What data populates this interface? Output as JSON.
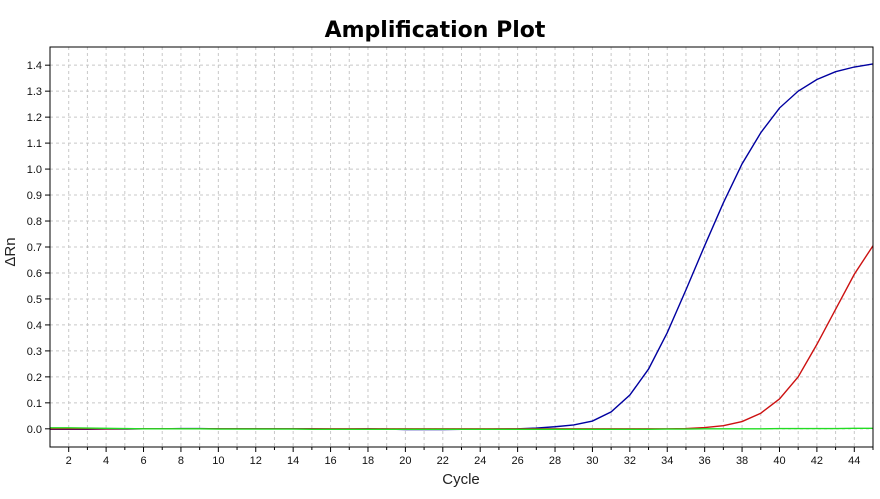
{
  "chart_data": {
    "type": "line",
    "title": "Amplification Plot",
    "xlabel": "Cycle",
    "ylabel": "ΔRn",
    "xlim": [
      1,
      45
    ],
    "ylim": [
      -0.07,
      1.47
    ],
    "x_ticks": [
      2,
      4,
      6,
      8,
      10,
      12,
      14,
      16,
      18,
      20,
      22,
      24,
      26,
      28,
      30,
      32,
      34,
      36,
      38,
      40,
      42,
      44
    ],
    "y_ticks": [
      0.0,
      0.1,
      0.2,
      0.3,
      0.4,
      0.5,
      0.6,
      0.7,
      0.8,
      0.9,
      1.0,
      1.1,
      1.2,
      1.3,
      1.4
    ],
    "y_tick_labels": [
      "0.0",
      "0.1",
      "0.2",
      "0.3",
      "0.4",
      "0.5",
      "0.6",
      "0.7",
      "0.8",
      "0.9",
      "1.0",
      "1.1",
      "1.2",
      "1.3",
      "1.4"
    ],
    "grid": true,
    "legend": "none",
    "x": [
      1,
      2,
      3,
      4,
      5,
      6,
      7,
      8,
      9,
      10,
      11,
      12,
      13,
      14,
      15,
      16,
      17,
      18,
      19,
      20,
      21,
      22,
      23,
      24,
      25,
      26,
      27,
      28,
      29,
      30,
      31,
      32,
      33,
      34,
      35,
      36,
      37,
      38,
      39,
      40,
      41,
      42,
      43,
      44,
      45
    ],
    "series": [
      {
        "color": "#0000a0",
        "values": [
          -0.002,
          -0.002,
          -0.002,
          -0.001,
          -0.001,
          0.0,
          0.0,
          0.001,
          0.001,
          0.0,
          0.0,
          0.0,
          0.0,
          0.0,
          0.0,
          -0.001,
          -0.001,
          0.0,
          -0.001,
          -0.003,
          -0.003,
          -0.003,
          -0.002,
          -0.002,
          -0.001,
          0.0,
          0.003,
          0.008,
          0.015,
          0.03,
          0.065,
          0.13,
          0.23,
          0.37,
          0.535,
          0.705,
          0.87,
          1.02,
          1.14,
          1.235,
          1.3,
          1.345,
          1.375,
          1.393,
          1.405
        ]
      },
      {
        "color": "#cc1111",
        "values": [
          0.0,
          0.0,
          0.0,
          0.0,
          0.0,
          0.0,
          0.0,
          0.0,
          0.0,
          0.0,
          0.0,
          0.0,
          0.0,
          0.0,
          0.0,
          0.0,
          0.0,
          0.0,
          0.0,
          0.0,
          0.0,
          0.0,
          0.0,
          0.0,
          0.0,
          0.0,
          0.0,
          0.0,
          0.0,
          0.0,
          0.0,
          0.0,
          0.0,
          0.0,
          0.001,
          0.005,
          0.012,
          0.028,
          0.06,
          0.115,
          0.2,
          0.325,
          0.46,
          0.595,
          0.705
        ]
      },
      {
        "color": "#22dd22",
        "values": [
          0.004,
          0.004,
          0.003,
          0.002,
          0.001,
          0.0,
          0.0,
          0.0,
          0.0,
          -0.001,
          -0.001,
          -0.001,
          -0.001,
          -0.001,
          -0.002,
          -0.002,
          -0.002,
          -0.002,
          -0.002,
          -0.002,
          -0.002,
          -0.002,
          -0.002,
          -0.002,
          -0.002,
          -0.002,
          -0.002,
          -0.002,
          -0.002,
          -0.002,
          -0.002,
          -0.002,
          -0.002,
          -0.001,
          -0.001,
          0.0,
          0.0,
          0.0,
          0.0,
          0.001,
          0.001,
          0.001,
          0.001,
          0.002,
          0.002
        ]
      }
    ]
  }
}
